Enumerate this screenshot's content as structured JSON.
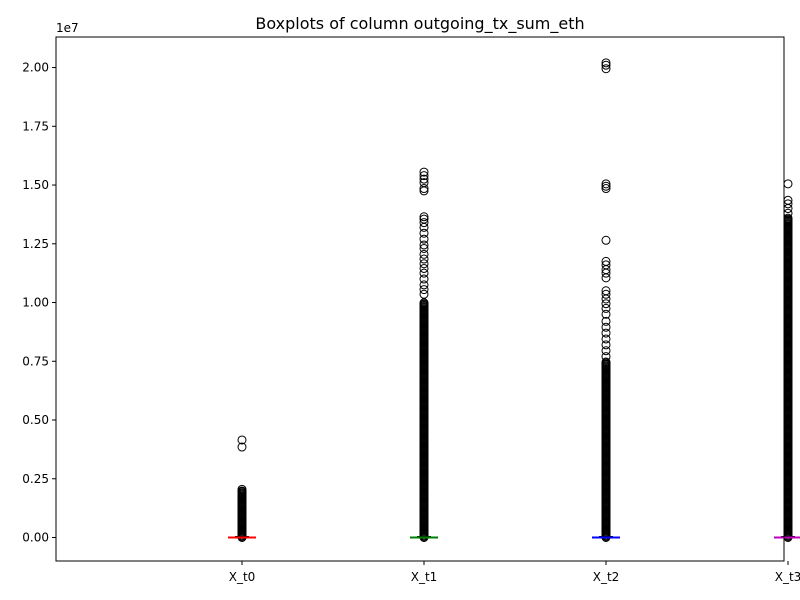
{
  "chart_data": {
    "type": "boxplot",
    "title": "Boxplots of column outgoing_tx_sum_eth",
    "xlabel": "",
    "ylabel": "",
    "y_offset_label": "1e7",
    "ylim": [
      -1000000,
      21300000
    ],
    "yticks": [
      0,
      2500000,
      5000000,
      7500000,
      10000000,
      12500000,
      15000000,
      17500000,
      20000000
    ],
    "ytick_labels": [
      "0.00",
      "0.25",
      "0.50",
      "0.75",
      "1.00",
      "1.25",
      "1.50",
      "1.75",
      "2.00"
    ],
    "categories": [
      "X_t0",
      "X_t1",
      "X_t2",
      "X_t3"
    ],
    "median_colors": [
      "#ff0000",
      "#008000",
      "#0000ff",
      "#bf00bf"
    ],
    "boxes": [
      {
        "name": "X_t0",
        "min": 0,
        "q1": 0,
        "median": 0,
        "q3": 0,
        "max": 0,
        "outlier_range": [
          0,
          2000000
        ],
        "outliers_extra": [
          4150000,
          3850000,
          2050000,
          1950000,
          1850000
        ]
      },
      {
        "name": "X_t1",
        "min": 0,
        "q1": 0,
        "median": 0,
        "q3": 0,
        "max": 0,
        "outlier_range": [
          0,
          10000000
        ],
        "outliers_extra": [
          15550000,
          15400000,
          15250000,
          15100000,
          14850000,
          14750000,
          13650000,
          13550000,
          13400000,
          13200000,
          12950000,
          12700000,
          12450000,
          12300000,
          12050000,
          11850000,
          11650000,
          11450000,
          11250000,
          11000000,
          10750000,
          10550000,
          10350000
        ]
      },
      {
        "name": "X_t2",
        "min": 0,
        "q1": 0,
        "median": 0,
        "q3": 0,
        "max": 0,
        "outlier_range": [
          0,
          7500000
        ],
        "outliers_extra": [
          20200000,
          20100000,
          19950000,
          15050000,
          14950000,
          14850000,
          12650000,
          11750000,
          11600000,
          11400000,
          11250000,
          11050000,
          10500000,
          10350000,
          10150000,
          9950000,
          9750000,
          9500000,
          9200000,
          8950000,
          8700000,
          8450000,
          8200000,
          7950000,
          7700000
        ]
      },
      {
        "name": "X_t3",
        "min": 0,
        "q1": 0,
        "median": 0,
        "q3": 0,
        "max": 0,
        "outlier_range": [
          0,
          13600000
        ],
        "outliers_extra": [
          15050000,
          14350000,
          14200000,
          14000000,
          13800000
        ]
      }
    ]
  }
}
